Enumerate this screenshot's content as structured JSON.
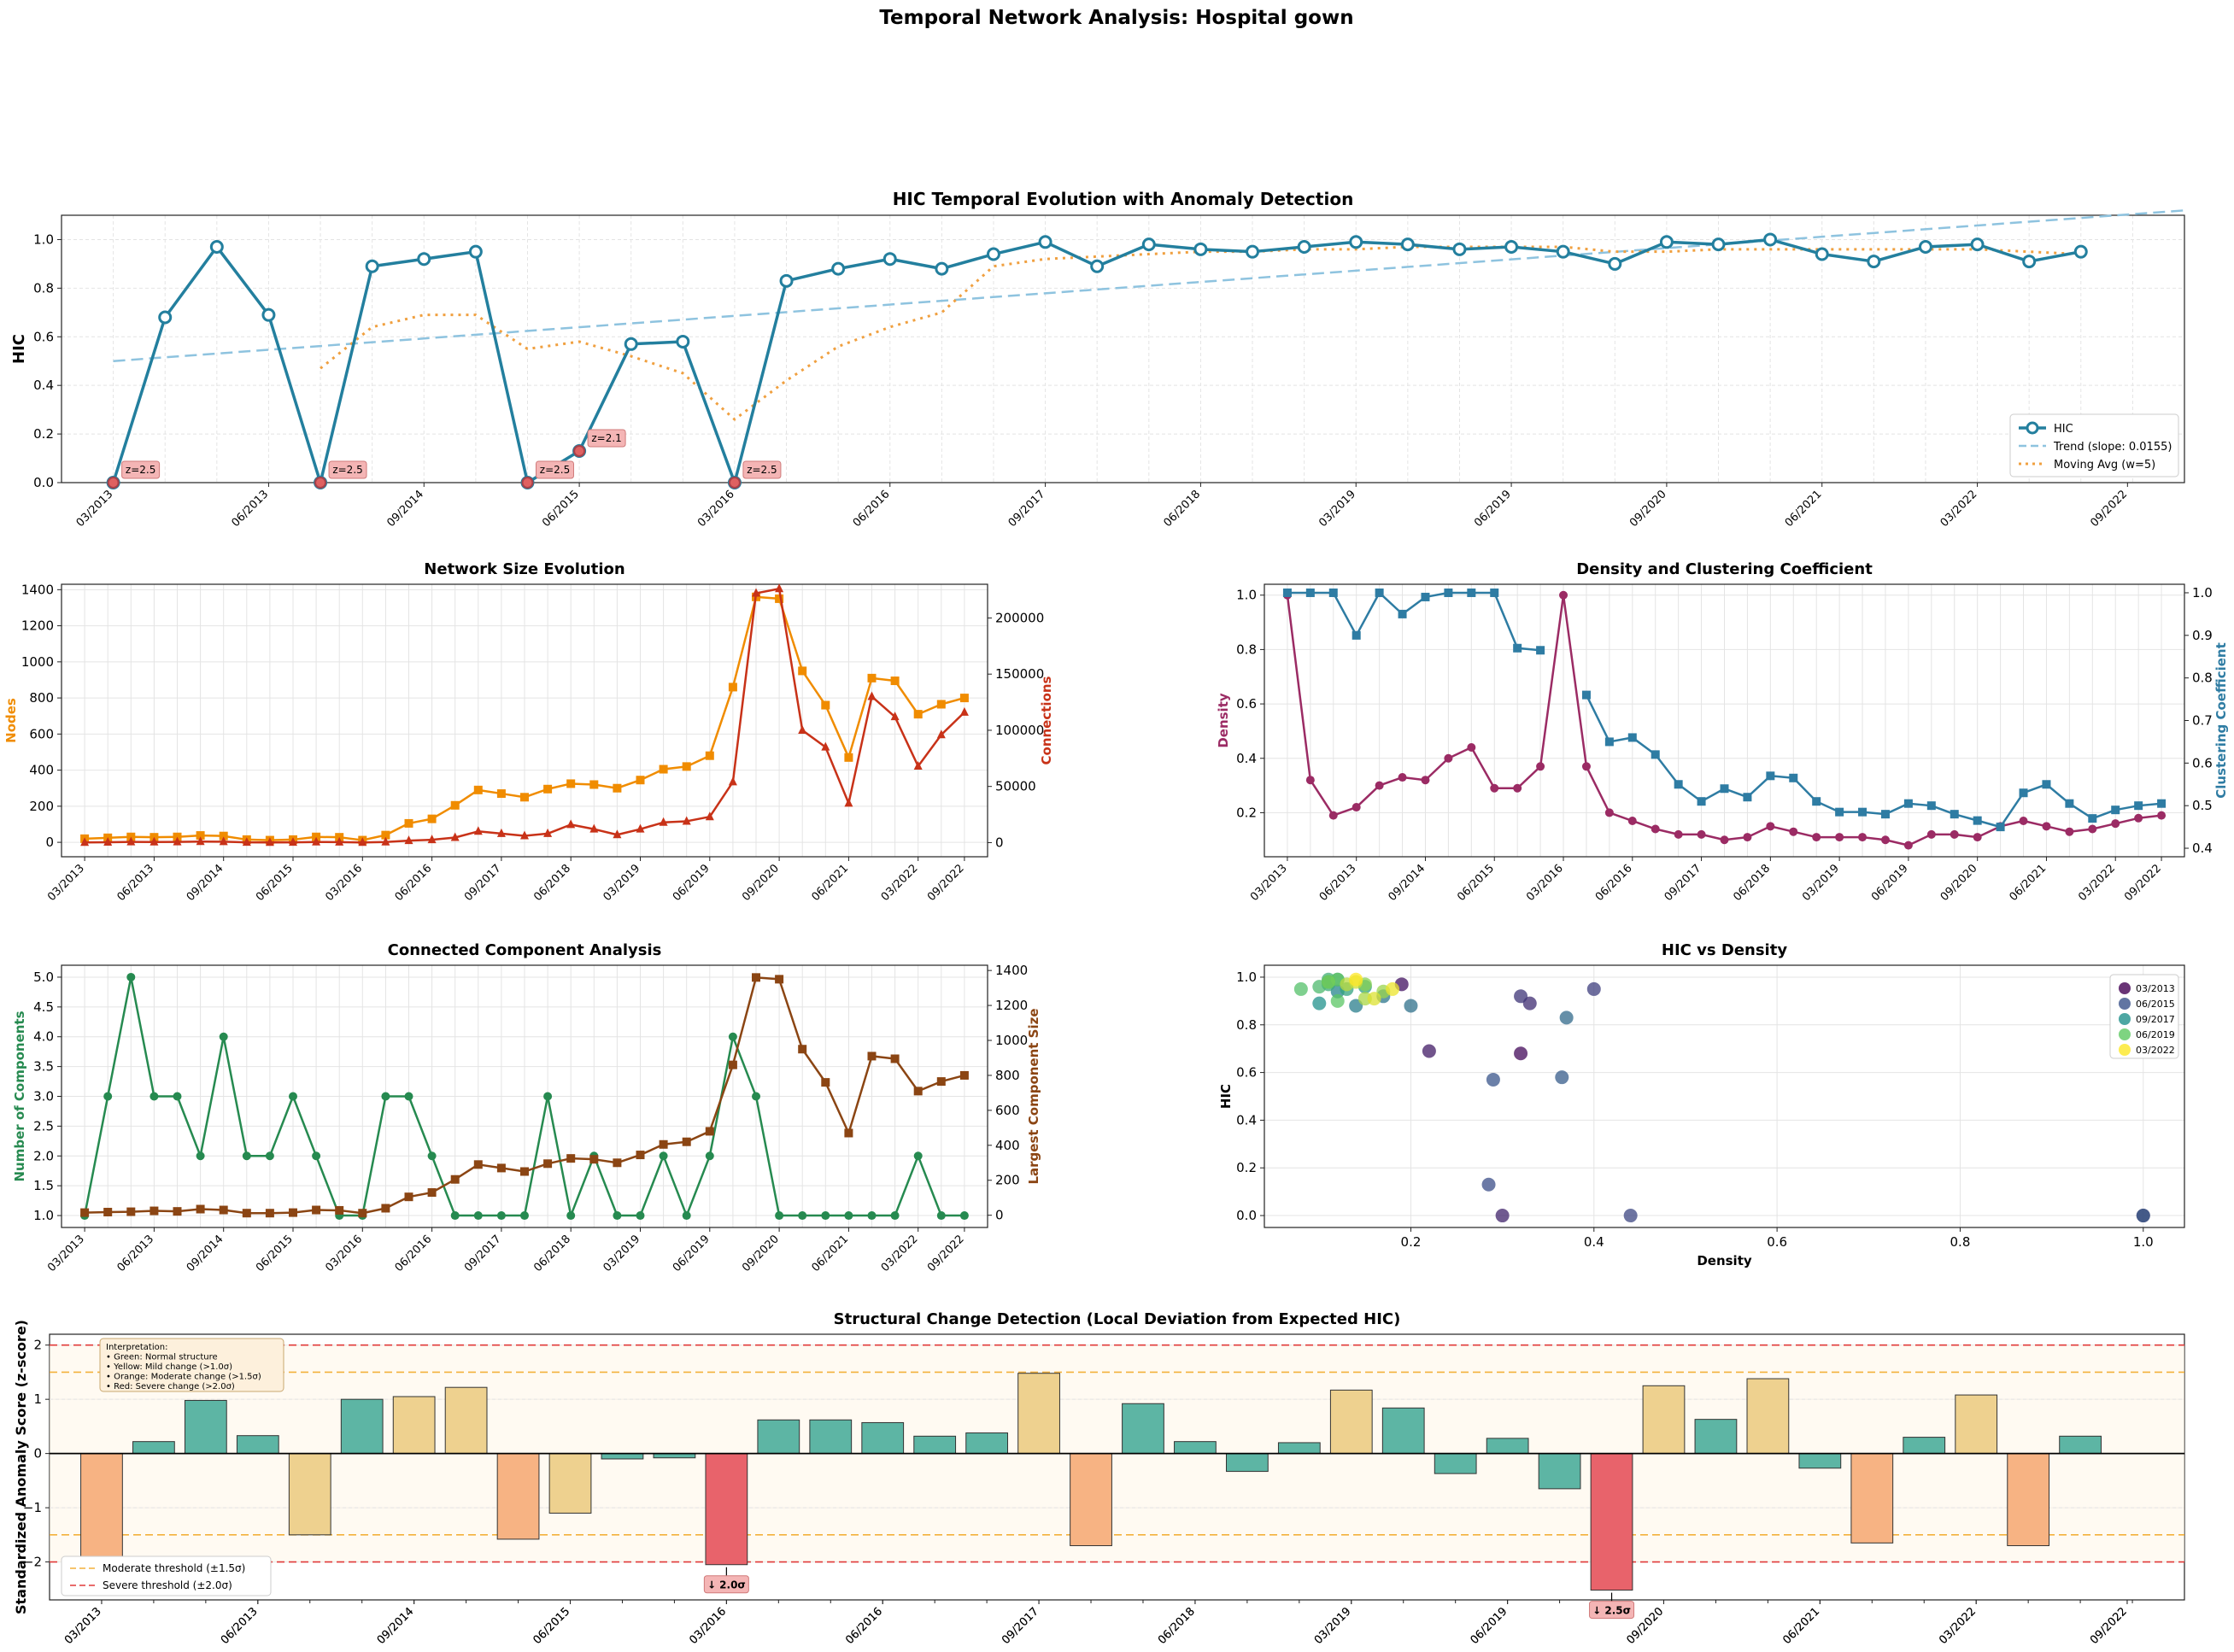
{
  "figure": {
    "suptitle": "Temporal Network Analysis: Hospital gown"
  },
  "colors": {
    "hic": "#237f9e",
    "trend": "#8ec3df",
    "ma": "#f0a040",
    "nodes": "#f08c00",
    "connections": "#c83218",
    "density": "#9b2b64",
    "clustering": "#2e7ca3",
    "components": "#268a50",
    "lcc": "#8b4513",
    "normal": "#5db5a4",
    "mild": "#eed18f",
    "moderate": "#f7b383",
    "severe": "#e8636b",
    "anom_bg": "#f4b5b5",
    "anom_mark": "#d42c2c"
  },
  "chart_data": [
    {
      "id": "hic",
      "type": "line",
      "title": "HIC Temporal Evolution with Anomaly Detection",
      "ylabel": "HIC",
      "xlabel": "",
      "ylim": [
        0,
        1.1
      ],
      "xlim": [
        -1,
        40
      ],
      "yticks": [
        0.0,
        0.2,
        0.4,
        0.6,
        0.8,
        1.0
      ],
      "xtick_labels": [
        "03/2013",
        "06/2013",
        "09/2014",
        "06/2015",
        "03/2016",
        "06/2016",
        "09/2017",
        "06/2018",
        "03/2019",
        "06/2019",
        "09/2020",
        "06/2021",
        "03/2022",
        "09/2022"
      ],
      "xtick_pos": [
        0,
        3,
        6,
        9,
        12,
        15,
        18,
        21,
        24,
        27,
        30,
        33,
        36,
        38.9
      ],
      "values": [
        0.0,
        0.68,
        0.97,
        0.69,
        0.0,
        0.89,
        0.92,
        0.95,
        0.0,
        0.13,
        0.57,
        0.58,
        0.0,
        0.83,
        0.88,
        0.92,
        0.88,
        0.94,
        0.99,
        0.89,
        0.98,
        0.96,
        0.95,
        0.97,
        0.99,
        0.98,
        0.96,
        0.97,
        0.95,
        0.9,
        0.99,
        0.98,
        1.0,
        0.94,
        0.91,
        0.97,
        0.98,
        0.91,
        0.95
      ],
      "trend": {
        "label": "Trend (slope: 0.0155)",
        "start": 0.5,
        "slope": 0.0155
      },
      "moving_avg": {
        "label": "Moving Avg (w=5)",
        "values": [
          null,
          null,
          null,
          null,
          0.47,
          0.64,
          0.69,
          0.69,
          0.55,
          0.58,
          0.52,
          0.45,
          0.26,
          0.42,
          0.56,
          0.64,
          0.7,
          0.89,
          0.92,
          0.93,
          0.94,
          0.95,
          0.95,
          0.96,
          0.96,
          0.97,
          0.97,
          0.97,
          0.97,
          0.95,
          0.95,
          0.96,
          0.96,
          0.96,
          0.96,
          0.96,
          0.96,
          0.95,
          0.94
        ]
      },
      "legend": [
        "HIC",
        "Trend (slope: 0.0155)",
        "Moving Avg (w=5)"
      ],
      "anomalies": [
        {
          "i": 0,
          "z": "z=2.5"
        },
        {
          "i": 4,
          "z": "z=2.5"
        },
        {
          "i": 8,
          "z": "z=2.5"
        },
        {
          "i": 9,
          "z": "z=2.1"
        },
        {
          "i": 12,
          "z": "z=2.5"
        }
      ]
    },
    {
      "id": "size",
      "type": "line",
      "title": "Network Size Evolution",
      "ylabel": "Nodes",
      "y2label": "Connections",
      "ylim": [
        -80,
        1430
      ],
      "y2lim": [
        -12600,
        230000
      ],
      "xlim": [
        -1,
        39
      ],
      "yticks": [
        0,
        200,
        400,
        600,
        800,
        1000,
        1200,
        1400
      ],
      "y2ticks": [
        0,
        50000,
        100000,
        150000,
        200000
      ],
      "xtick_labels": [
        "03/2013",
        "06/2013",
        "09/2014",
        "06/2015",
        "03/2016",
        "06/2016",
        "09/2017",
        "06/2018",
        "03/2019",
        "06/2019",
        "09/2020",
        "06/2021",
        "03/2022",
        "09/2022"
      ],
      "xtick_pos": [
        0,
        3,
        6,
        9,
        12,
        15,
        18,
        21,
        24,
        27,
        30,
        33,
        36,
        38
      ],
      "nodes": [
        20,
        25,
        30,
        28,
        30,
        38,
        35,
        15,
        12,
        15,
        30,
        28,
        12,
        40,
        105,
        130,
        205,
        290,
        270,
        250,
        295,
        325,
        320,
        300,
        345,
        405,
        420,
        480,
        860,
        1360,
        1350,
        950,
        760,
        470,
        910,
        895,
        710,
        765,
        800
      ],
      "connections": [
        100,
        350,
        600,
        500,
        600,
        900,
        800,
        200,
        150,
        200,
        500,
        450,
        150,
        500,
        1800,
        2500,
        4500,
        10000,
        8000,
        6000,
        8000,
        16000,
        12000,
        7000,
        12000,
        18000,
        19000,
        23000,
        54000,
        222000,
        226000,
        100000,
        85000,
        35000,
        130000,
        112000,
        68000,
        96000,
        116000
      ]
    },
    {
      "id": "density",
      "type": "line",
      "title": "Density and Clustering Coefficient",
      "ylabel": "Density",
      "y2label": "Clustering Coefficient",
      "ylim": [
        0.038,
        1.04
      ],
      "y2lim": [
        0.38,
        1.02
      ],
      "xlim": [
        -1,
        39
      ],
      "yticks": [
        0.2,
        0.4,
        0.6,
        0.8,
        1.0
      ],
      "y2ticks": [
        0.4,
        0.5,
        0.6,
        0.7,
        0.8,
        0.9,
        1.0
      ],
      "xtick_labels": [
        "03/2013",
        "06/2013",
        "09/2014",
        "06/2015",
        "03/2016",
        "06/2016",
        "09/2017",
        "06/2018",
        "03/2019",
        "06/2019",
        "09/2020",
        "06/2021",
        "03/2022",
        "09/2022"
      ],
      "xtick_pos": [
        0,
        3,
        6,
        9,
        12,
        15,
        18,
        21,
        24,
        27,
        30,
        33,
        36,
        38
      ],
      "density": [
        1.0,
        0.32,
        0.19,
        0.22,
        0.3,
        0.33,
        0.32,
        0.4,
        0.44,
        0.29,
        0.29,
        0.37,
        1.0,
        0.37,
        0.2,
        0.17,
        0.14,
        0.12,
        0.12,
        0.1,
        0.11,
        0.15,
        0.13,
        0.11,
        0.11,
        0.11,
        0.1,
        0.08,
        0.12,
        0.12,
        0.11,
        0.15,
        0.17,
        0.15,
        0.13,
        0.14,
        0.16,
        0.18,
        0.19
      ],
      "clustering": [
        1.0,
        1.0,
        1.0,
        0.9,
        1.0,
        0.95,
        0.99,
        1.0,
        1.0,
        1.0,
        0.87,
        0.865,
        null,
        0.76,
        0.65,
        0.66,
        0.62,
        0.55,
        0.51,
        0.54,
        0.52,
        0.57,
        0.565,
        0.51,
        0.485,
        0.485,
        0.48,
        0.505,
        0.5,
        0.48,
        0.465,
        0.45,
        0.53,
        0.55,
        0.505,
        0.47,
        0.49,
        0.5,
        0.505
      ]
    },
    {
      "id": "components",
      "type": "line",
      "title": "Connected Component Analysis",
      "ylabel": "Number of Components",
      "y2label": "Largest Component Size",
      "ylim": [
        0.8,
        5.2
      ],
      "y2lim": [
        -70,
        1430
      ],
      "xlim": [
        -1,
        39
      ],
      "yticks": [
        1.0,
        1.5,
        2.0,
        2.5,
        3.0,
        3.5,
        4.0,
        4.5,
        5.0
      ],
      "y2ticks": [
        0,
        200,
        400,
        600,
        800,
        1000,
        1200,
        1400
      ],
      "xtick_labels": [
        "03/2013",
        "06/2013",
        "09/2014",
        "06/2015",
        "03/2016",
        "06/2016",
        "09/2017",
        "06/2018",
        "03/2019",
        "06/2019",
        "09/2020",
        "06/2021",
        "03/2022",
        "09/2022"
      ],
      "xtick_pos": [
        0,
        3,
        6,
        9,
        12,
        15,
        18,
        21,
        24,
        27,
        30,
        33,
        36,
        38
      ],
      "components": [
        1,
        3,
        5,
        3,
        3,
        2,
        4,
        2,
        2,
        3,
        2,
        1,
        1,
        3,
        3,
        2,
        1,
        1,
        1,
        1,
        3,
        1,
        2,
        1,
        1,
        2,
        1,
        2,
        4,
        3,
        1,
        1,
        1,
        1,
        1,
        1,
        2,
        1,
        1
      ],
      "largest": [
        15,
        18,
        20,
        25,
        22,
        35,
        30,
        12,
        12,
        15,
        30,
        28,
        12,
        40,
        105,
        130,
        205,
        290,
        270,
        250,
        295,
        325,
        320,
        300,
        345,
        405,
        420,
        480,
        860,
        1360,
        1350,
        950,
        760,
        470,
        910,
        895,
        710,
        765,
        800
      ]
    },
    {
      "id": "scatter",
      "type": "scatter",
      "title": "HIC vs Density",
      "xlabel": "Density",
      "ylabel": "HIC",
      "xlim": [
        0.04,
        1.045
      ],
      "ylim": [
        -0.05,
        1.05
      ],
      "xticks": [
        0.2,
        0.4,
        0.6,
        0.8,
        1.0
      ],
      "yticks": [
        0.0,
        0.2,
        0.4,
        0.6,
        0.8,
        1.0
      ],
      "legend": [
        "03/2013",
        "06/2015",
        "09/2017",
        "06/2019",
        "03/2022"
      ],
      "points": [
        {
          "x": 1.0,
          "y": 0.0,
          "t": 0
        },
        {
          "x": 0.32,
          "y": 0.68,
          "t": 1
        },
        {
          "x": 0.19,
          "y": 0.97,
          "t": 2
        },
        {
          "x": 0.22,
          "y": 0.69,
          "t": 3
        },
        {
          "x": 0.3,
          "y": 0.0,
          "t": 4
        },
        {
          "x": 0.33,
          "y": 0.89,
          "t": 5
        },
        {
          "x": 0.32,
          "y": 0.92,
          "t": 6
        },
        {
          "x": 0.4,
          "y": 0.95,
          "t": 7
        },
        {
          "x": 0.44,
          "y": 0.0,
          "t": 8
        },
        {
          "x": 0.285,
          "y": 0.13,
          "t": 9
        },
        {
          "x": 0.29,
          "y": 0.57,
          "t": 10
        },
        {
          "x": 0.365,
          "y": 0.58,
          "t": 11
        },
        {
          "x": 1.0,
          "y": 0.0,
          "t": 12
        },
        {
          "x": 0.37,
          "y": 0.83,
          "t": 13
        },
        {
          "x": 0.2,
          "y": 0.88,
          "t": 14
        },
        {
          "x": 0.17,
          "y": 0.92,
          "t": 15
        },
        {
          "x": 0.14,
          "y": 0.88,
          "t": 16
        },
        {
          "x": 0.12,
          "y": 0.94,
          "t": 17
        },
        {
          "x": 0.12,
          "y": 0.99,
          "t": 18
        },
        {
          "x": 0.1,
          "y": 0.89,
          "t": 19
        },
        {
          "x": 0.11,
          "y": 0.98,
          "t": 20
        },
        {
          "x": 0.15,
          "y": 0.96,
          "t": 21
        },
        {
          "x": 0.13,
          "y": 0.95,
          "t": 22
        },
        {
          "x": 0.11,
          "y": 0.97,
          "t": 23
        },
        {
          "x": 0.11,
          "y": 0.99,
          "t": 24
        },
        {
          "x": 0.11,
          "y": 0.98,
          "t": 25
        },
        {
          "x": 0.1,
          "y": 0.96,
          "t": 26
        },
        {
          "x": 0.08,
          "y": 0.95,
          "t": 27
        },
        {
          "x": 0.12,
          "y": 0.9,
          "t": 28
        },
        {
          "x": 0.12,
          "y": 0.99,
          "t": 29
        },
        {
          "x": 0.11,
          "y": 0.98,
          "t": 30
        },
        {
          "x": 0.15,
          "y": 0.97,
          "t": 31
        },
        {
          "x": 0.17,
          "y": 0.94,
          "t": 32
        },
        {
          "x": 0.15,
          "y": 0.91,
          "t": 33
        },
        {
          "x": 0.13,
          "y": 0.97,
          "t": 34
        },
        {
          "x": 0.14,
          "y": 0.98,
          "t": 35
        },
        {
          "x": 0.16,
          "y": 0.91,
          "t": 36
        },
        {
          "x": 0.18,
          "y": 0.95,
          "t": 37
        },
        {
          "x": 0.14,
          "y": 0.99,
          "t": 38
        }
      ]
    },
    {
      "id": "anomaly",
      "type": "bar",
      "title": "Structural Change Detection (Local Deviation from Expected HIC)",
      "ylabel": "Standardized Anomaly Score (z-score)",
      "ylim": [
        -2.7,
        2.2
      ],
      "xlim": [
        -1,
        40
      ],
      "yticks": [
        -2,
        -1,
        0,
        1,
        2
      ],
      "xtick_labels": [
        "03/2013",
        "06/2013",
        "09/2014",
        "06/2015",
        "03/2016",
        "06/2016",
        "09/2017",
        "06/2018",
        "03/2019",
        "06/2019",
        "09/2020",
        "06/2021",
        "03/2022",
        "09/2022"
      ],
      "xtick_pos": [
        0,
        3,
        6,
        9,
        12,
        15,
        18,
        21,
        24,
        27,
        30,
        33,
        36,
        38.9
      ],
      "values": [
        -1.9,
        0.22,
        0.98,
        0.33,
        -1.5,
        1.0,
        1.05,
        1.22,
        -1.58,
        -1.1,
        -0.1,
        -0.08,
        -2.05,
        0.62,
        0.62,
        0.57,
        0.32,
        0.38,
        1.48,
        -1.7,
        0.92,
        0.22,
        -0.33,
        0.2,
        1.17,
        0.84,
        -0.37,
        0.28,
        -0.65,
        -2.52,
        1.25,
        0.63,
        1.38,
        -0.27,
        -1.65,
        0.3,
        1.08,
        -1.7,
        0.32
      ],
      "moderate_label": "Moderate threshold (±1.5σ)",
      "severe_label": "Severe threshold (±2.0σ)",
      "interpretation": [
        "Interpretation:",
        "• Green: Normal structure",
        "• Yellow: Mild change (>1.0σ)",
        "• Orange: Moderate change (>1.5σ)",
        "• Red: Severe change (>2.0σ)"
      ],
      "callouts": [
        {
          "i": 12,
          "label": "↓ 2.0σ"
        },
        {
          "i": 29,
          "label": "↓ 2.5σ"
        }
      ]
    }
  ]
}
